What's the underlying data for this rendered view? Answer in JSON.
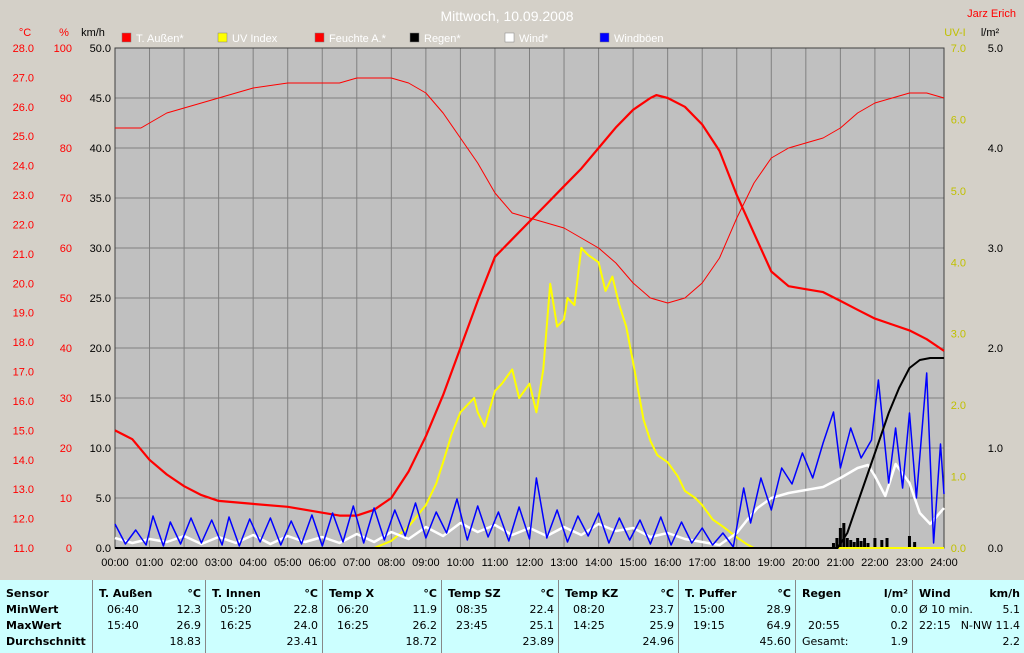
{
  "chart_data": {
    "type": "line",
    "title": "Mittwoch, 10.09.2008",
    "author": "Jarz Erich",
    "x_ticks": [
      "00:00",
      "01:00",
      "02:00",
      "03:00",
      "04:00",
      "05:00",
      "06:00",
      "07:00",
      "08:00",
      "09:00",
      "10:00",
      "11:00",
      "12:00",
      "13:00",
      "14:00",
      "15:00",
      "16:00",
      "17:00",
      "18:00",
      "19:00",
      "20:00",
      "21:00",
      "22:00",
      "23:00",
      "24:00"
    ],
    "axes": {
      "temp": {
        "unit": "°C",
        "ticks": [
          "28.0",
          "27.0",
          "26.0",
          "25.0",
          "24.0",
          "23.0",
          "22.0",
          "21.0",
          "20.0",
          "19.0",
          "18.0",
          "17.0",
          "16.0",
          "15.0",
          "14.0",
          "13.0",
          "12.0",
          "11.0"
        ],
        "range": [
          11,
          28
        ],
        "color": "#ff0000"
      },
      "humidity": {
        "unit": "%",
        "ticks": [
          "100",
          "90",
          "80",
          "70",
          "60",
          "50",
          "40",
          "30",
          "20",
          "10",
          "0"
        ],
        "range": [
          0,
          100
        ],
        "color": "#ff0000"
      },
      "wind": {
        "unit": "km/h",
        "ticks": [
          "50.0",
          "45.0",
          "40.0",
          "35.0",
          "30.0",
          "25.0",
          "20.0",
          "15.0",
          "10.0",
          "5.0",
          "0.0"
        ],
        "range": [
          0,
          50
        ],
        "color": "#000000"
      },
      "uv": {
        "unit": "UV-I",
        "ticks": [
          "7.0",
          "6.0",
          "5.0",
          "4.0",
          "3.0",
          "2.0",
          "1.0",
          "0.0"
        ],
        "range": [
          0,
          7
        ],
        "color": "#c0c000"
      },
      "rain": {
        "unit": "l/m²",
        "ticks": [
          "5.0",
          "4.0",
          "3.0",
          "2.0",
          "1.0",
          "0.0"
        ],
        "range": [
          0,
          5
        ],
        "color": "#000000"
      }
    },
    "legend": [
      {
        "name": "T. Außen*",
        "color": "#ff0000"
      },
      {
        "name": "UV Index",
        "color": "#ffff00"
      },
      {
        "name": "Feuchte A.*",
        "color": "#ff0000"
      },
      {
        "name": "Regen*",
        "color": "#000000"
      },
      {
        "name": "Wind*",
        "color": "#ffffff"
      },
      {
        "name": "Windböen",
        "color": "#0000ff"
      }
    ],
    "series": [
      {
        "key": "temp",
        "axis": "temp",
        "color": "#ff0000",
        "width": 2.2,
        "x": [
          0,
          0.5,
          1,
          1.5,
          2,
          2.5,
          3,
          4,
          5,
          6,
          6.5,
          7,
          7.5,
          8,
          8.5,
          9,
          9.5,
          10,
          10.5,
          11,
          11.5,
          12,
          12.5,
          13,
          13.5,
          14,
          14.5,
          15,
          15.5,
          15.67,
          16,
          16.5,
          17,
          17.5,
          18,
          18.5,
          19,
          19.5,
          20,
          20.5,
          21,
          21.5,
          22,
          22.5,
          23,
          23.5,
          24
        ],
        "y": [
          15.0,
          14.7,
          14.0,
          13.5,
          13.1,
          12.8,
          12.6,
          12.5,
          12.4,
          12.2,
          12.1,
          12.1,
          12.3,
          12.7,
          13.6,
          14.8,
          16.2,
          17.8,
          19.4,
          20.9,
          21.5,
          22.1,
          22.7,
          23.3,
          23.9,
          24.6,
          25.3,
          25.9,
          26.3,
          26.4,
          26.3,
          26.0,
          25.4,
          24.5,
          23.0,
          21.7,
          20.4,
          19.9,
          19.8,
          19.7,
          19.4,
          19.1,
          18.8,
          18.6,
          18.4,
          18.1,
          17.7
        ]
      },
      {
        "key": "humidity",
        "axis": "humidity",
        "color": "#ff0000",
        "width": 1,
        "x": [
          0,
          0.75,
          1,
          1.5,
          2,
          2.5,
          3,
          4,
          5,
          6,
          6.5,
          7,
          7.5,
          8,
          8.5,
          9,
          9.5,
          10,
          10.5,
          11,
          11.5,
          12,
          12.5,
          13,
          13.5,
          14,
          14.5,
          15,
          15.5,
          16,
          16.5,
          17,
          17.5,
          18,
          18.5,
          19,
          19.5,
          20,
          20.5,
          21,
          21.5,
          22,
          22.5,
          23,
          23.5,
          24
        ],
        "y": [
          84,
          84,
          85,
          87,
          88,
          89,
          90,
          92,
          93,
          93,
          93,
          94,
          94,
          94,
          93,
          91,
          87,
          82,
          77,
          71,
          67,
          66,
          65,
          64,
          62,
          60,
          57,
          53,
          50,
          49,
          50,
          53,
          58,
          66,
          73,
          78,
          80,
          81,
          82,
          84,
          87,
          89,
          90,
          91,
          91,
          90
        ]
      },
      {
        "key": "uv",
        "axis": "uv",
        "color": "#ffff00",
        "width": 2,
        "x": [
          0,
          7.5,
          8,
          8.5,
          9,
          9.3,
          9.5,
          9.75,
          10,
          10.2,
          10.4,
          10.5,
          10.7,
          11,
          11.2,
          11.5,
          11.7,
          12,
          12.2,
          12.4,
          12.6,
          12.8,
          13,
          13.1,
          13.3,
          13.5,
          13.7,
          14,
          14.2,
          14.4,
          14.6,
          14.8,
          15,
          15.3,
          15.5,
          15.7,
          16,
          16.3,
          16.5,
          16.8,
          17,
          17.3,
          17.6,
          18,
          18.3,
          18.5,
          19,
          20,
          21,
          22,
          23,
          24
        ],
        "y": [
          0,
          0,
          0.1,
          0.3,
          0.6,
          0.9,
          1.2,
          1.6,
          1.9,
          2.0,
          2.1,
          1.9,
          1.7,
          2.2,
          2.3,
          2.5,
          2.1,
          2.3,
          1.9,
          2.5,
          3.7,
          3.1,
          3.2,
          3.5,
          3.4,
          4.2,
          4.1,
          4.0,
          3.6,
          3.8,
          3.4,
          3.1,
          2.6,
          1.8,
          1.5,
          1.3,
          1.2,
          1.0,
          0.8,
          0.7,
          0.6,
          0.4,
          0.3,
          0.15,
          0.05,
          0,
          0,
          0,
          0,
          0,
          0,
          0
        ]
      },
      {
        "key": "wind",
        "axis": "wind",
        "color": "#ffffff",
        "width": 2.5,
        "x": [
          0,
          0.5,
          1,
          1.5,
          2,
          2.5,
          3,
          3.5,
          4,
          4.5,
          5,
          5.5,
          6,
          6.5,
          7,
          7.5,
          8,
          8.5,
          9,
          9.5,
          10,
          10.5,
          11,
          11.5,
          12,
          12.5,
          13,
          13.5,
          14,
          14.5,
          15,
          15.5,
          16,
          16.5,
          17,
          17.5,
          18,
          18.3,
          18.6,
          19,
          19.5,
          20,
          20.5,
          21,
          21.5,
          21.8,
          22,
          22.3,
          22.6,
          23,
          23.3,
          23.6,
          24
        ],
        "y": [
          1.0,
          0.5,
          0.9,
          0.6,
          1.2,
          0.4,
          1.1,
          0.5,
          1.3,
          0.4,
          1.2,
          0.6,
          1.1,
          0.5,
          1.4,
          0.6,
          1.6,
          0.9,
          2.1,
          1.2,
          2.5,
          1.6,
          2.3,
          1.3,
          2.0,
          1.2,
          2.1,
          1.3,
          2.4,
          1.7,
          2.0,
          1.1,
          1.5,
          0.9,
          0.6,
          0.3,
          1.5,
          2.8,
          4.0,
          5.0,
          5.5,
          5.8,
          6.1,
          7.0,
          8.0,
          8.3,
          7.2,
          5.2,
          8.4,
          6.5,
          3.5,
          2.4,
          4.0
        ]
      },
      {
        "key": "gust",
        "axis": "wind",
        "color": "#0000ff",
        "width": 1.5,
        "x": [
          0,
          0.3,
          0.6,
          0.9,
          1.1,
          1.4,
          1.6,
          1.9,
          2.2,
          2.5,
          2.8,
          3.1,
          3.3,
          3.6,
          3.9,
          4.2,
          4.5,
          4.8,
          5.1,
          5.4,
          5.7,
          6.0,
          6.3,
          6.6,
          6.9,
          7.2,
          7.5,
          7.8,
          8.1,
          8.4,
          8.7,
          9.0,
          9.3,
          9.6,
          9.9,
          10.2,
          10.5,
          10.8,
          11.1,
          11.4,
          11.7,
          12.0,
          12.2,
          12.5,
          12.8,
          13.1,
          13.4,
          13.7,
          14.0,
          14.3,
          14.6,
          14.9,
          15.2,
          15.5,
          15.8,
          16.1,
          16.4,
          16.7,
          17.0,
          17.3,
          17.6,
          17.9,
          18.2,
          18.4,
          18.7,
          19.0,
          19.3,
          19.6,
          19.9,
          20.2,
          20.5,
          20.8,
          21.0,
          21.3,
          21.6,
          21.9,
          22.1,
          22.4,
          22.6,
          22.8,
          23.0,
          23.2,
          23.5,
          23.7,
          23.9,
          24
        ],
        "y": [
          2.4,
          0.4,
          1.8,
          0.3,
          3.2,
          0.2,
          2.6,
          0.4,
          3.0,
          0.5,
          2.8,
          0.3,
          3.1,
          0.2,
          2.9,
          0.6,
          3.0,
          0.3,
          2.7,
          0.4,
          3.3,
          0.2,
          3.5,
          0.6,
          4.2,
          0.5,
          4.0,
          0.8,
          3.8,
          1.2,
          4.5,
          1.0,
          3.6,
          1.5,
          4.9,
          0.8,
          4.2,
          1.1,
          3.6,
          0.7,
          4.1,
          0.9,
          7.0,
          1.0,
          3.8,
          0.6,
          3.2,
          1.2,
          3.5,
          0.5,
          3.0,
          0.8,
          2.8,
          0.4,
          3.1,
          0.3,
          2.6,
          0.5,
          2.0,
          0.3,
          1.5,
          0.1,
          6.0,
          2.5,
          7.0,
          3.8,
          8.0,
          6.4,
          9.5,
          7.0,
          10.5,
          13.6,
          8.0,
          12.0,
          9.0,
          10.8,
          16.8,
          6.5,
          12.0,
          6.0,
          13.5,
          5.0,
          17.5,
          0.5,
          10.4,
          5.4
        ]
      },
      {
        "key": "rain",
        "axis": "rain",
        "color": "#000000",
        "width": 2,
        "x": [
          0,
          20.92,
          21.2,
          21.5,
          21.8,
          22.1,
          22.4,
          22.7,
          23.0,
          23.3,
          23.6,
          24
        ],
        "y": [
          0,
          0,
          0.15,
          0.45,
          0.75,
          1.05,
          1.35,
          1.6,
          1.8,
          1.88,
          1.9,
          1.9
        ]
      }
    ],
    "rain_bars": {
      "x": [
        20.8,
        20.9,
        21.0,
        21.1,
        21.2,
        21.3,
        21.4,
        21.5,
        21.6,
        21.7,
        21.8,
        22.0,
        22.2,
        22.35,
        23.0,
        23.15
      ],
      "y": [
        0.05,
        0.1,
        0.2,
        0.25,
        0.1,
        0.08,
        0.06,
        0.1,
        0.07,
        0.1,
        0.05,
        0.1,
        0.08,
        0.1,
        0.12,
        0.06
      ]
    }
  },
  "stats": {
    "sensor_col": {
      "header": "Sensor",
      "rows": [
        "MinWert",
        "MaxWert",
        "Durchschnitt"
      ]
    },
    "columns": [
      {
        "name": "T. Außen",
        "unit": "°C",
        "min_time": "06:40",
        "min": "12.3",
        "max_time": "15:40",
        "max": "26.9",
        "avg": "18.83"
      },
      {
        "name": "T. Innen",
        "unit": "°C",
        "min_time": "05:20",
        "min": "22.8",
        "max_time": "16:25",
        "max": "24.0",
        "avg": "23.41"
      },
      {
        "name": "Temp X",
        "unit": "°C",
        "min_time": "06:20",
        "min": "11.9",
        "max_time": "16:25",
        "max": "26.2",
        "avg": "18.72"
      },
      {
        "name": "Temp SZ",
        "unit": "°C",
        "min_time": "08:35",
        "min": "22.4",
        "max_time": "23:45",
        "max": "25.1",
        "avg": "23.89"
      },
      {
        "name": "Temp KZ",
        "unit": "°C",
        "min_time": "08:20",
        "min": "23.7",
        "max_time": "14:25",
        "max": "25.9",
        "avg": "24.96"
      },
      {
        "name": "T. Puffer",
        "unit": "°C",
        "min_time": "15:00",
        "min": "28.9",
        "max_time": "19:15",
        "max": "64.9",
        "avg": "45.60"
      }
    ],
    "regen": {
      "name": "Regen",
      "unit": "l/m²",
      "min_time": "",
      "min": "0.0",
      "max_time": "20:55",
      "max": "0.2",
      "total_label": "Gesamt:",
      "total": "1.9"
    },
    "wind": {
      "name": "Wind",
      "unit": "km/h",
      "avg_label": "Ø 10 min.",
      "avg": "5.1",
      "max_time": "22:15",
      "max": "N-NW 11.4",
      "avg2": "2.2"
    }
  }
}
